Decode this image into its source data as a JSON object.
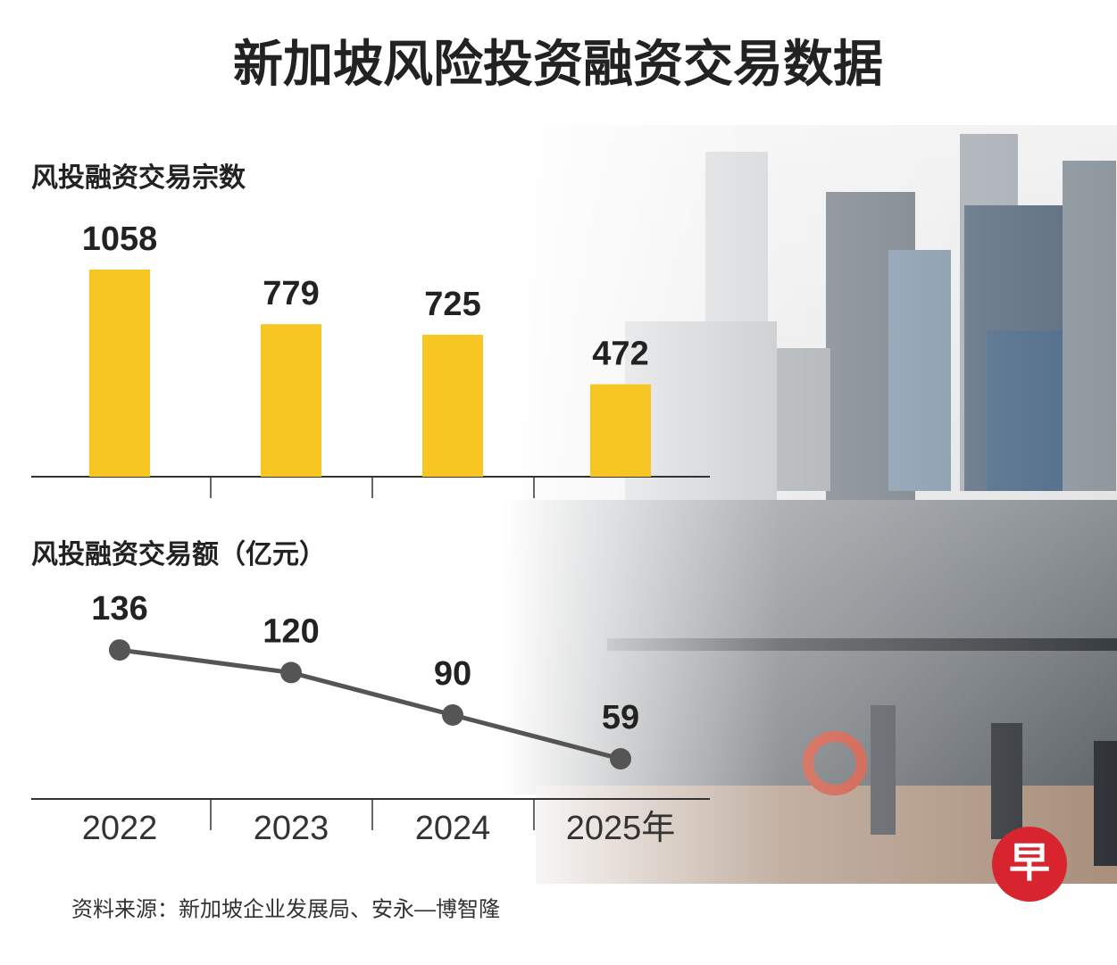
{
  "title": "新加坡风险投资融资交易数据",
  "source": "资料来源：新加坡企业发展局、安永—博智隆",
  "logo": "早",
  "chart_data": [
    {
      "type": "bar",
      "title": "风投融资交易宗数",
      "values": [
        1058,
        779,
        725,
        472
      ],
      "color": "#f8c623"
    },
    {
      "type": "line",
      "title": "风投融资交易额（亿元）",
      "categories": [
        "2022",
        "2023",
        "2024",
        "2025年"
      ],
      "values": [
        136,
        120,
        90,
        59
      ],
      "color": "#555555"
    }
  ]
}
